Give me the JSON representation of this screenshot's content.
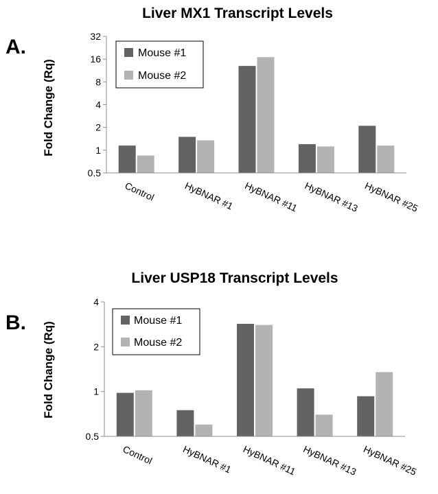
{
  "chart_data": [
    {
      "type": "bar",
      "panel_label": "A.",
      "title": "Liver MX1 Transcript Levels",
      "ylabel": "Fold Change (Rq)",
      "xlabel": "",
      "y_scale": "log2",
      "ylim": [
        0.5,
        32
      ],
      "yticks": [
        0.5,
        1,
        2,
        4,
        8,
        16,
        32
      ],
      "ytick_labels": [
        "0.5",
        "1",
        "2",
        "4",
        "8",
        "16",
        "32"
      ],
      "categories": [
        "Control",
        "HyBNAR #1",
        "HyBNAR #11",
        "HyBNAR #13",
        "HyBNAR #25"
      ],
      "legend_position": "top-left",
      "series": [
        {
          "name": "Mouse #1",
          "color": "#636363",
          "values": [
            1.15,
            1.5,
            13,
            1.2,
            2.1
          ]
        },
        {
          "name": "Mouse #2",
          "color": "#b3b3b3",
          "values": [
            0.85,
            1.35,
            17,
            1.12,
            1.15
          ]
        }
      ]
    },
    {
      "type": "bar",
      "panel_label": "B.",
      "title": "Liver USP18 Transcript Levels",
      "ylabel": "Fold Change (Rq)",
      "xlabel": "",
      "y_scale": "log2",
      "ylim": [
        0.5,
        4
      ],
      "yticks": [
        0.5,
        1,
        2,
        4
      ],
      "ytick_labels": [
        "0.5",
        "1",
        "2",
        "4"
      ],
      "categories": [
        "Control",
        "HyBNAR #1",
        "HyBNAR #11",
        "HyBNAR #13",
        "HyBNAR #25"
      ],
      "legend_position": "top-left",
      "series": [
        {
          "name": "Mouse #1",
          "color": "#636363",
          "values": [
            0.98,
            0.75,
            2.85,
            1.05,
            0.93
          ]
        },
        {
          "name": "Mouse #2",
          "color": "#b3b3b3",
          "values": [
            1.02,
            0.6,
            2.8,
            0.7,
            1.35
          ]
        }
      ]
    }
  ]
}
